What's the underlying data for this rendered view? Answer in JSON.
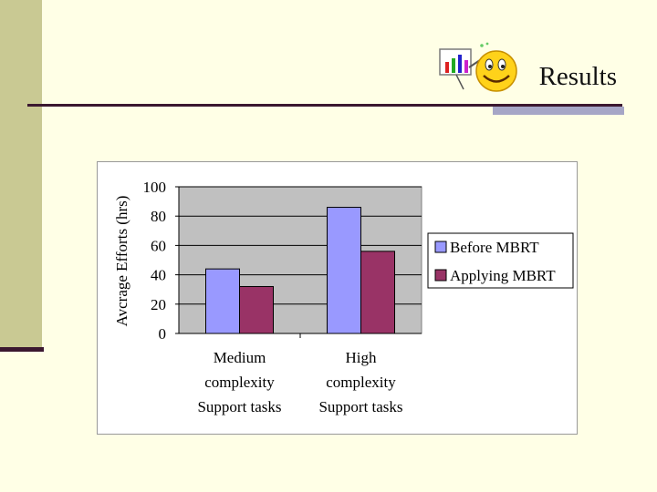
{
  "slide": {
    "title": "Results"
  },
  "colors": {
    "background": "#FFFFE6",
    "sidebar": "#C9C993",
    "rule": "#3B1830",
    "accent": "#A6A6C6",
    "plot_area": "#C0C0C0"
  },
  "logo": {
    "icon": "smiley-chart-icon"
  },
  "chart_data": {
    "type": "bar",
    "title": "",
    "xlabel": "",
    "ylabel": "Avcrage Efforts (hrs)",
    "ylim": [
      0,
      100
    ],
    "yticks": [
      0,
      20,
      40,
      60,
      80,
      100
    ],
    "grid": true,
    "legend_position": "right",
    "categories": [
      [
        "Medium",
        "complexity",
        "Support tasks"
      ],
      [
        "High",
        "complexity",
        "Support tasks"
      ]
    ],
    "series": [
      {
        "name": "Before MBRT",
        "color": "#9999FF",
        "values": [
          44,
          86
        ]
      },
      {
        "name": "Applying MBRT",
        "color": "#993366",
        "values": [
          32,
          56
        ]
      }
    ]
  }
}
